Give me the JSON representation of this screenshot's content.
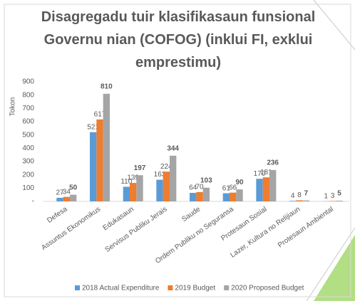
{
  "chart_data": {
    "type": "bar",
    "title": "Disagregadu tuir klasifikasaun funsional Governu nian (COFOG) (inklui FI, exklui emprestimu)",
    "y_label": "Tokon",
    "categories": [
      "Defesa",
      "Assuntus Ekonomikus",
      "Edukasaun",
      "Servisus Publiku Jerais",
      "Saude",
      "Ordem Publiku no Seguransa",
      "Protesaun Sosial",
      "Lazer, Kultura no Relijiaun",
      "Protesaun Ambiental"
    ],
    "series": [
      {
        "name": "2018 Actual Expenditure",
        "color": "#5b9bd5",
        "values": [
          27,
          521,
          110,
          163,
          64,
          61,
          170,
          4,
          1
        ]
      },
      {
        "name": "2019 Budget",
        "color": "#ed7d31",
        "values": [
          34,
          617,
          139,
          224,
          70,
          66,
          181,
          8,
          3
        ]
      },
      {
        "name": "2020 Proposed Budget",
        "color": "#a5a5a5",
        "values": [
          50,
          810,
          197,
          344,
          103,
          90,
          236,
          7,
          5
        ]
      }
    ],
    "ylim": [
      0,
      900
    ],
    "yticks": [
      {
        "value": 0,
        "label": "-"
      },
      100,
      200,
      300,
      400,
      500,
      600,
      700,
      800,
      900
    ],
    "grid": false,
    "legend": "bottom"
  }
}
